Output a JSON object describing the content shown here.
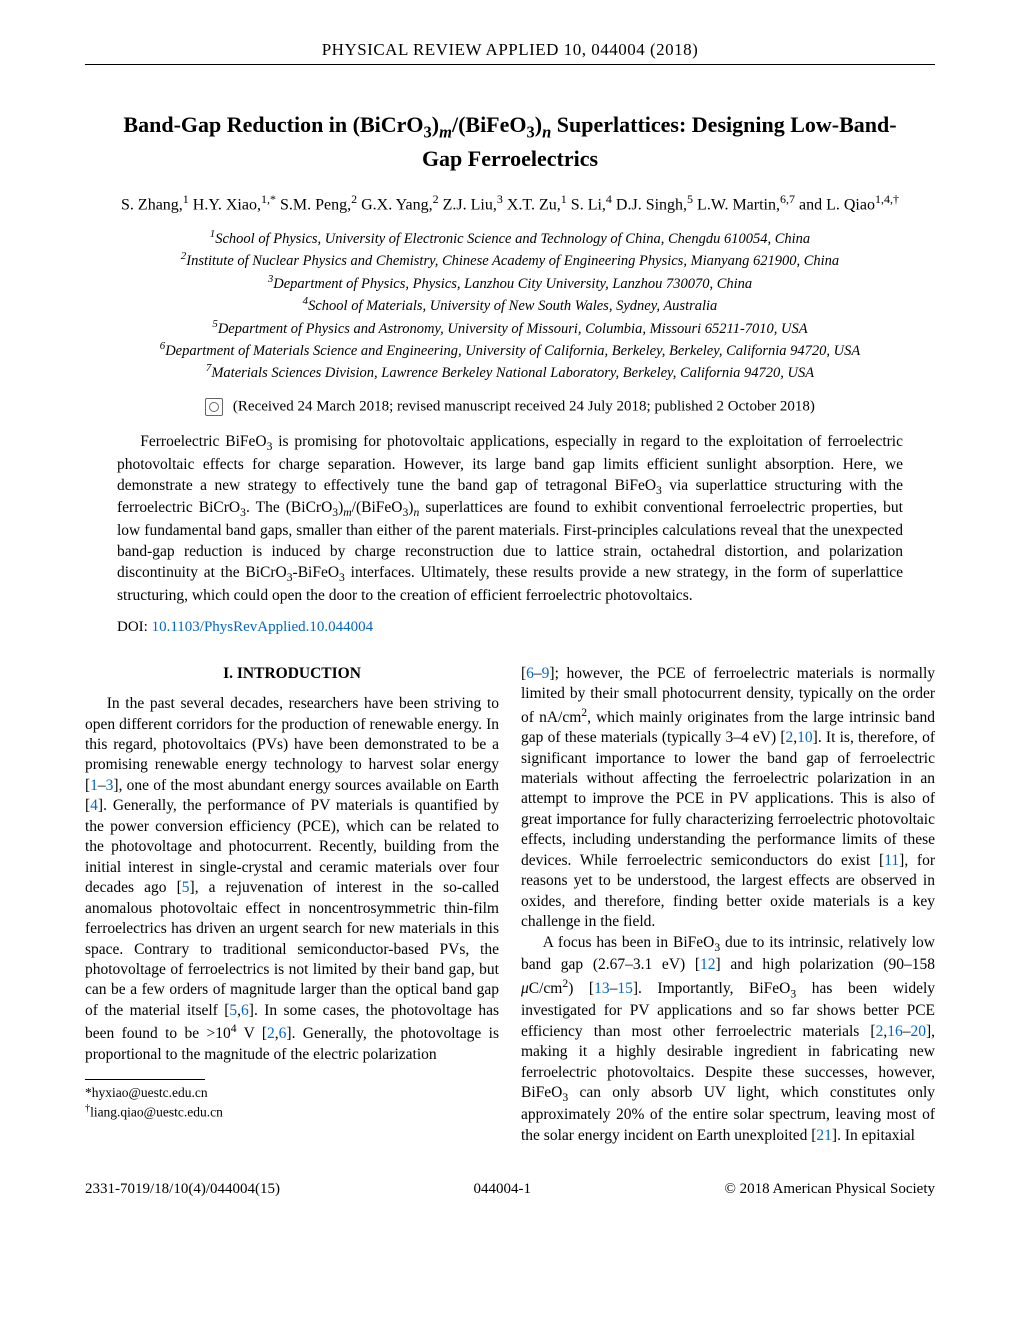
{
  "journal_header": "PHYSICAL REVIEW APPLIED 10, 044004 (2018)",
  "title_html": "Band-Gap Reduction in (BiCrO<sub>3</sub>)<sub><i>m</i></sub>/(BiFeO<sub>3</sub>)<sub><i>n</i></sub> Superlattices: Designing Low-Band-Gap Ferroelectrics",
  "authors_html": "S. Zhang,<sup>1</sup> H.Y. Xiao,<sup>1,*</sup> S.M. Peng,<sup>2</sup> G.X. Yang,<sup>2</sup> Z.J. Liu,<sup>3</sup> X.T. Zu,<sup>1</sup> S. Li,<sup>4</sup> D.J. Singh,<sup>5</sup> L.W. Martin,<sup>6,7</sup> and L. Qiao<sup>1,4,†</sup>",
  "affiliations": [
    "<sup>1</sup>School of Physics, University of Electronic Science and Technology of China, Chengdu 610054, China",
    "<sup>2</sup>Institute of Nuclear Physics and Chemistry, Chinese Academy of Engineering Physics, Mianyang 621900, China",
    "<sup>3</sup>Department of Physics, Physics, Lanzhou City University, Lanzhou 730070, China",
    "<sup>4</sup>School of Materials, University of New South Wales, Sydney, Australia",
    "<sup>5</sup>Department of Physics and Astronomy, University of Missouri, Columbia, Missouri 65211-7010, USA",
    "<sup>6</sup>Department of Materials Science and Engineering, University of California, Berkeley, Berkeley, California 94720, USA",
    "<sup>7</sup>Materials Sciences Division, Lawrence Berkeley National Laboratory, Berkeley, California 94720, USA"
  ],
  "dates": "(Received 24 March 2018; revised manuscript received 24 July 2018; published 2 October 2018)",
  "abstract_html": "Ferroelectric BiFeO<sub>3</sub> is promising for photovoltaic applications, especially in regard to the exploitation of ferroelectric photovoltaic effects for charge separation. However, its large band gap limits efficient sunlight absorption. Here, we demonstrate a new strategy to effectively tune the band gap of tetragonal BiFeO<sub>3</sub> via superlattice structuring with the ferroelectric BiCrO<sub>3</sub>. The (BiCrO<sub>3</sub>)<sub><i>m</i></sub>/(BiFeO<sub>3</sub>)<sub><i>n</i></sub> superlattices are found to exhibit conventional ferroelectric properties, but low fundamental band gaps, smaller than either of the parent materials. First-principles calculations reveal that the unexpected band-gap reduction is induced by charge reconstruction due to lattice strain, octahedral distortion, and polarization discontinuity at the BiCrO<sub>3</sub>-BiFeO<sub>3</sub> interfaces. Ultimately, these results provide a new strategy, in the form of superlattice structuring, which could open the door to the creation of efficient ferroelectric photovoltaics.",
  "doi_label": "DOI:",
  "doi_link": "10.1103/PhysRevApplied.10.044004",
  "section_heading": "I. INTRODUCTION",
  "body_col1_p1_html": "In the past several decades, researchers have been striving to open different corridors for the production of renewable energy. In this regard, photovoltaics (PVs) have been demonstrated to be a promising renewable energy technology to harvest solar energy [<span class=\"ref\">1</span>–<span class=\"ref\">3</span>], one of the most abundant energy sources available on Earth [<span class=\"ref\">4</span>]. Generally, the performance of PV materials is quantified by the power conversion efficiency (PCE), which can be related to the photovoltage and photocurrent. Recently, building from the initial interest in single-crystal and ceramic materials over four decades ago [<span class=\"ref\">5</span>], a rejuvenation of interest in the so-called anomalous photovoltaic effect in noncentrosymmetric thin-film ferroelectrics has driven an urgent search for new materials in this space. Contrary to traditional semiconductor-based PVs, the photovoltage of ferroelectrics is not limited by their band gap, but can be a few orders of magnitude larger than the optical band gap of the material itself [<span class=\"ref\">5</span>,<span class=\"ref\">6</span>]. In some cases, the photovoltage has been found to be &gt;10<sup>4</sup> V [<span class=\"ref\">2</span>,<span class=\"ref\">6</span>]. Generally, the photovoltage is proportional to the magnitude of the electric polarization",
  "body_col2_p1_html": "[<span class=\"ref\">6</span>–<span class=\"ref\">9</span>]; however, the PCE of ferroelectric materials is normally limited by their small photocurrent density, typically on the order of nA/cm<sup>2</sup>, which mainly originates from the large intrinsic band gap of these materials (typically 3–4 eV) [<span class=\"ref\">2</span>,<span class=\"ref\">10</span>]. It is, therefore, of significant importance to lower the band gap of ferroelectric materials without affecting the ferroelectric polarization in an attempt to improve the PCE in PV applications. This is also of great importance for fully characterizing ferroelectric photovoltaic effects, including understanding the performance limits of these devices. While ferroelectric semiconductors do exist [<span class=\"ref\">11</span>], for reasons yet to be understood, the largest effects are observed in oxides, and therefore, finding better oxide materials is a key challenge in the field.",
  "body_col2_p2_html": "A focus has been in BiFeO<sub>3</sub> due to its intrinsic, relatively low band gap (2.67–3.1 eV) [<span class=\"ref\">12</span>] and high polarization (90–158 <i>μ</i>C/cm<sup>2</sup>) [<span class=\"ref\">13</span>–<span class=\"ref\">15</span>]. Importantly, BiFeO<sub>3</sub> has been widely investigated for PV applications and so far shows better PCE efficiency than most other ferroelectric materials [<span class=\"ref\">2</span>,<span class=\"ref\">16</span>–<span class=\"ref\">20</span>], making it a highly desirable ingredient in fabricating new ferroelectric photovoltaics. Despite these successes, however, BiFeO<sub>3</sub> can only absorb UV light, which constitutes only approximately 20% of the entire solar spectrum, leaving most of the solar energy incident on Earth unexploited [<span class=\"ref\">21</span>]. In epitaxial",
  "footnotes": [
    "*hyxiao@uestc.edu.cn",
    "<sup>†</sup>liang.qiao@uestc.edu.cn"
  ],
  "footer": {
    "left": "2331-7019/18/10(4)/044004(15)",
    "center": "044004-1",
    "right": "© 2018 American Physical Society"
  },
  "colors": {
    "link": "#0066cc",
    "text": "#000000",
    "background": "#ffffff"
  }
}
